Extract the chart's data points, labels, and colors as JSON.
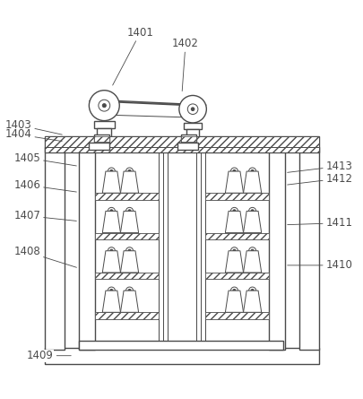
{
  "fig_width": 4.06,
  "fig_height": 4.45,
  "dpi": 100,
  "line_color": "#4a4a4a",
  "bg_color": "#ffffff",
  "line_width": 1.0,
  "thin_lw": 0.7,
  "label_fontsize": 8.5
}
